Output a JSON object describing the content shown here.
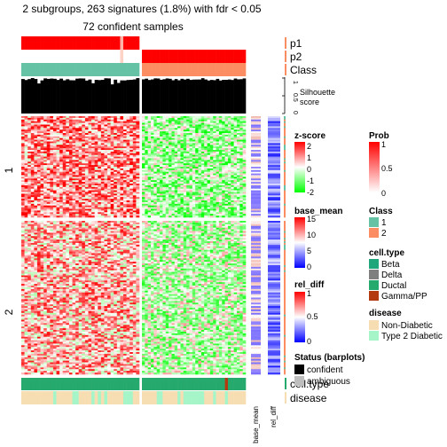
{
  "title": {
    "line1": "2 subgroups, 263 signatures (1.8%) with fdr < 0.05",
    "line2": "72 confident samples"
  },
  "top_annotation_labels": [
    "p1",
    "p2",
    "Class"
  ],
  "silhouette": {
    "label_line1": "Silhouette",
    "label_line2": "score",
    "ticks": [
      "1",
      "0.5",
      "0"
    ]
  },
  "row_group_labels": [
    "1",
    "2"
  ],
  "side_column_labels": [
    "base_mean",
    "rel_diff"
  ],
  "bottom_annotation_labels": [
    "cell.type",
    "disease"
  ],
  "legends": {
    "zscore": {
      "title": "z-score",
      "ticks": [
        "2",
        "1",
        "0",
        "-1",
        "-2"
      ]
    },
    "base_mean": {
      "title": "base_mean",
      "ticks": [
        "15",
        "10",
        "5",
        "0"
      ]
    },
    "rel_diff": {
      "title": "rel_diff",
      "ticks": [
        "1",
        "0.5",
        "0"
      ]
    },
    "status": {
      "title": "Status (barplots)",
      "items": [
        "confident",
        "ambiguous"
      ]
    },
    "prob": {
      "title": "Prob",
      "ticks": [
        "1",
        "0.5",
        "0"
      ]
    },
    "class": {
      "title": "Class",
      "items": [
        "1",
        "2"
      ]
    },
    "cell_type": {
      "title": "cell.type",
      "items": [
        "Beta",
        "Delta",
        "Ductal",
        "Gamma/PP"
      ]
    },
    "disease": {
      "title": "disease",
      "items": [
        "Non-Diabetic",
        "Type 2 Diabetic"
      ]
    }
  },
  "colors": {
    "class1": "#66C2A5",
    "class2": "#FC8D62",
    "prob_high": "#FF0000",
    "beta": "#1FA67A",
    "delta": "#7F7F7F",
    "ductal": "#26A96C",
    "gamma_pp": "#B33A0E",
    "non_diabetic": "#F7DEB2",
    "t2d": "#A6F5C8",
    "confident": "#000000",
    "ambiguous": "#BEBEBE"
  },
  "chart_data": {
    "type": "heatmap",
    "n_signatures": 263,
    "fdr_threshold": 0.05,
    "n_confident_samples": 72,
    "column_groups": [
      {
        "class": "1",
        "n_samples": 37
      },
      {
        "class": "2",
        "n_samples": 35
      }
    ],
    "row_groups": [
      {
        "label": "1",
        "pattern": "high z-score in class 1, low in class 2"
      },
      {
        "label": "2",
        "pattern": "mostly high z-score in class 1 and class 2 mixed, greener in class 2"
      }
    ],
    "zscore_range": [
      -2,
      2
    ],
    "base_mean_range": [
      0,
      15
    ],
    "rel_diff_range": [
      0,
      1
    ],
    "prob_range": [
      0,
      1
    ],
    "silhouette_range": [
      0,
      1
    ]
  }
}
